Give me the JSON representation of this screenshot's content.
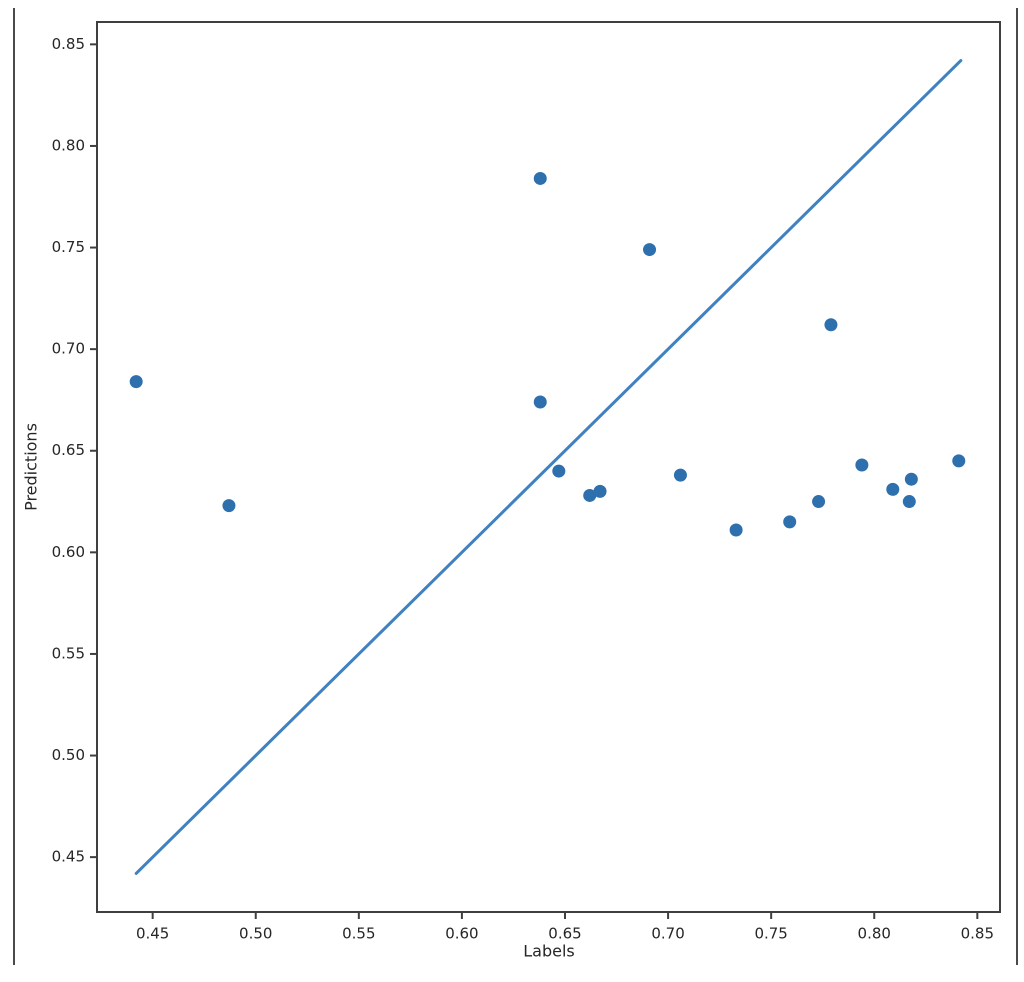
{
  "page": {
    "background": "#ffffff",
    "border_color": "#4a4a4a"
  },
  "chart_data": {
    "type": "scatter",
    "title": "",
    "xlabel": "Labels",
    "ylabel": "Predictions",
    "xlim": [
      0.423,
      0.861
    ],
    "ylim": [
      0.423,
      0.861
    ],
    "grid": false,
    "legend": "none",
    "xtick_values": [
      0.45,
      0.5,
      0.55,
      0.6,
      0.65,
      0.7,
      0.75,
      0.8,
      0.85
    ],
    "xtick_labels": [
      "0.45",
      "0.50",
      "0.55",
      "0.60",
      "0.65",
      "0.70",
      "0.75",
      "0.80",
      "0.85"
    ],
    "ytick_values": [
      0.45,
      0.5,
      0.55,
      0.6,
      0.65,
      0.7,
      0.75,
      0.8,
      0.85
    ],
    "ytick_labels": [
      "0.45",
      "0.50",
      "0.55",
      "0.60",
      "0.65",
      "0.70",
      "0.75",
      "0.80",
      "0.85"
    ],
    "series": [
      {
        "name": "scatter-points",
        "type": "scatter",
        "points": [
          [
            0.442,
            0.684
          ],
          [
            0.487,
            0.623
          ],
          [
            0.638,
            0.784
          ],
          [
            0.638,
            0.674
          ],
          [
            0.647,
            0.64
          ],
          [
            0.662,
            0.628
          ],
          [
            0.667,
            0.63
          ],
          [
            0.691,
            0.749
          ],
          [
            0.706,
            0.638
          ],
          [
            0.733,
            0.611
          ],
          [
            0.759,
            0.615
          ],
          [
            0.773,
            0.625
          ],
          [
            0.779,
            0.712
          ],
          [
            0.794,
            0.643
          ],
          [
            0.809,
            0.631
          ],
          [
            0.817,
            0.625
          ],
          [
            0.818,
            0.636
          ],
          [
            0.841,
            0.645
          ]
        ]
      },
      {
        "name": "identity-line",
        "type": "line",
        "points": [
          [
            0.442,
            0.442
          ],
          [
            0.842,
            0.842
          ]
        ]
      }
    ],
    "colors": {
      "marker": "#2e6fad",
      "line": "#3f81c1",
      "spine": "#3f3f3f",
      "tick_label": "#262626"
    }
  }
}
